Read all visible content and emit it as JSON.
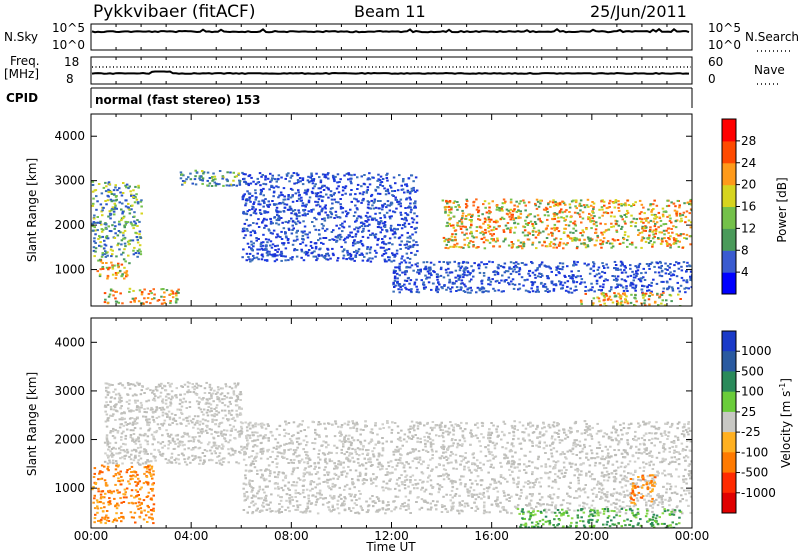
{
  "header": {
    "station": "Pykkvibaer (fitACF)",
    "beam": "Beam 11",
    "date": "25/Jun/2011"
  },
  "strip_sky": {
    "left_label": "N.Sky",
    "top_tick": "10^5",
    "bottom_tick": "10^0",
    "right_label": "N.Search",
    "right_top_tick": "10^5",
    "right_bottom_tick": "10^0"
  },
  "strip_freq": {
    "left_label_1": "Freq.",
    "left_label_2": "[MHz]",
    "top_tick": "18",
    "bottom_tick": "8",
    "right_label": "Nave",
    "right_top_tick": "60",
    "right_bottom_tick": "0"
  },
  "strip_cpid": {
    "left_label": "CPID",
    "program": "normal (fast stereo) 153"
  },
  "chart_data": [
    {
      "type": "heatmap",
      "name": "power",
      "ylabel": "Slant Range [km]",
      "ylim": [
        180,
        4500
      ],
      "yticks": [
        "1000",
        "2000",
        "3000",
        "4000"
      ],
      "colorbar_label": "Power [dB]",
      "colorbar_ticks": [
        "4",
        "8",
        "12",
        "16",
        "20",
        "24",
        "28"
      ],
      "colorbar_colors": [
        "#0000ff",
        "#3a5bd0",
        "#4a9a5a",
        "#74c14a",
        "#d6d41f",
        "#ff9a1a",
        "#ff4a00",
        "#ff0000"
      ],
      "regions": [
        {
          "t": [
            0.0,
            2.0
          ],
          "r": [
            1300,
            3000
          ],
          "level": "mid"
        },
        {
          "t": [
            0.2,
            1.5
          ],
          "r": [
            800,
            1300
          ],
          "level": "high"
        },
        {
          "t": [
            0.5,
            3.5
          ],
          "r": [
            250,
            600
          ],
          "level": "high"
        },
        {
          "t": [
            3.5,
            6.0
          ],
          "r": [
            2900,
            3250
          ],
          "level": "mid"
        },
        {
          "t": [
            6.0,
            13.0
          ],
          "r": [
            1200,
            3200
          ],
          "level": "low"
        },
        {
          "t": [
            12.0,
            24.0
          ],
          "r": [
            500,
            1200
          ],
          "level": "low"
        },
        {
          "t": [
            14.0,
            24.0
          ],
          "r": [
            1500,
            2600
          ],
          "level": "high"
        },
        {
          "t": [
            19.5,
            23.5
          ],
          "r": [
            200,
            500
          ],
          "level": "high"
        }
      ]
    },
    {
      "type": "heatmap",
      "name": "velocity",
      "ylabel": "Slant Range [km]",
      "xlabel": "Time UT",
      "ylim": [
        180,
        4500
      ],
      "xlim": [
        "00:00",
        "24:00"
      ],
      "xticks": [
        "00:00",
        "04:00",
        "08:00",
        "12:00",
        "16:00",
        "20:00",
        "00:00"
      ],
      "yticks": [
        "1000",
        "2000",
        "3000",
        "4000"
      ],
      "colorbar_label": "Velocity [m s^-1]",
      "colorbar_ticks": [
        "1000",
        "500",
        "100",
        "25",
        "-25",
        "-100",
        "-500",
        "-1000"
      ],
      "colorbar_colors": [
        "#1a3ac8",
        "#2a5aa0",
        "#2a8a5a",
        "#6acc3a",
        "#c8c8c4",
        "#ffb020",
        "#ff7a00",
        "#ff2a00",
        "#e00000"
      ],
      "regions": [
        {
          "t": [
            0.0,
            2.5
          ],
          "r": [
            300,
            1500
          ],
          "level": "negative"
        },
        {
          "t": [
            0.5,
            6.0
          ],
          "r": [
            1500,
            3200
          ],
          "level": "near-zero"
        },
        {
          "t": [
            6.0,
            24.0
          ],
          "r": [
            500,
            2400
          ],
          "level": "near-zero"
        },
        {
          "t": [
            17.0,
            23.5
          ],
          "r": [
            200,
            600
          ],
          "level": "positive"
        },
        {
          "t": [
            21.5,
            22.5
          ],
          "r": [
            700,
            1300
          ],
          "level": "negative"
        }
      ]
    }
  ]
}
